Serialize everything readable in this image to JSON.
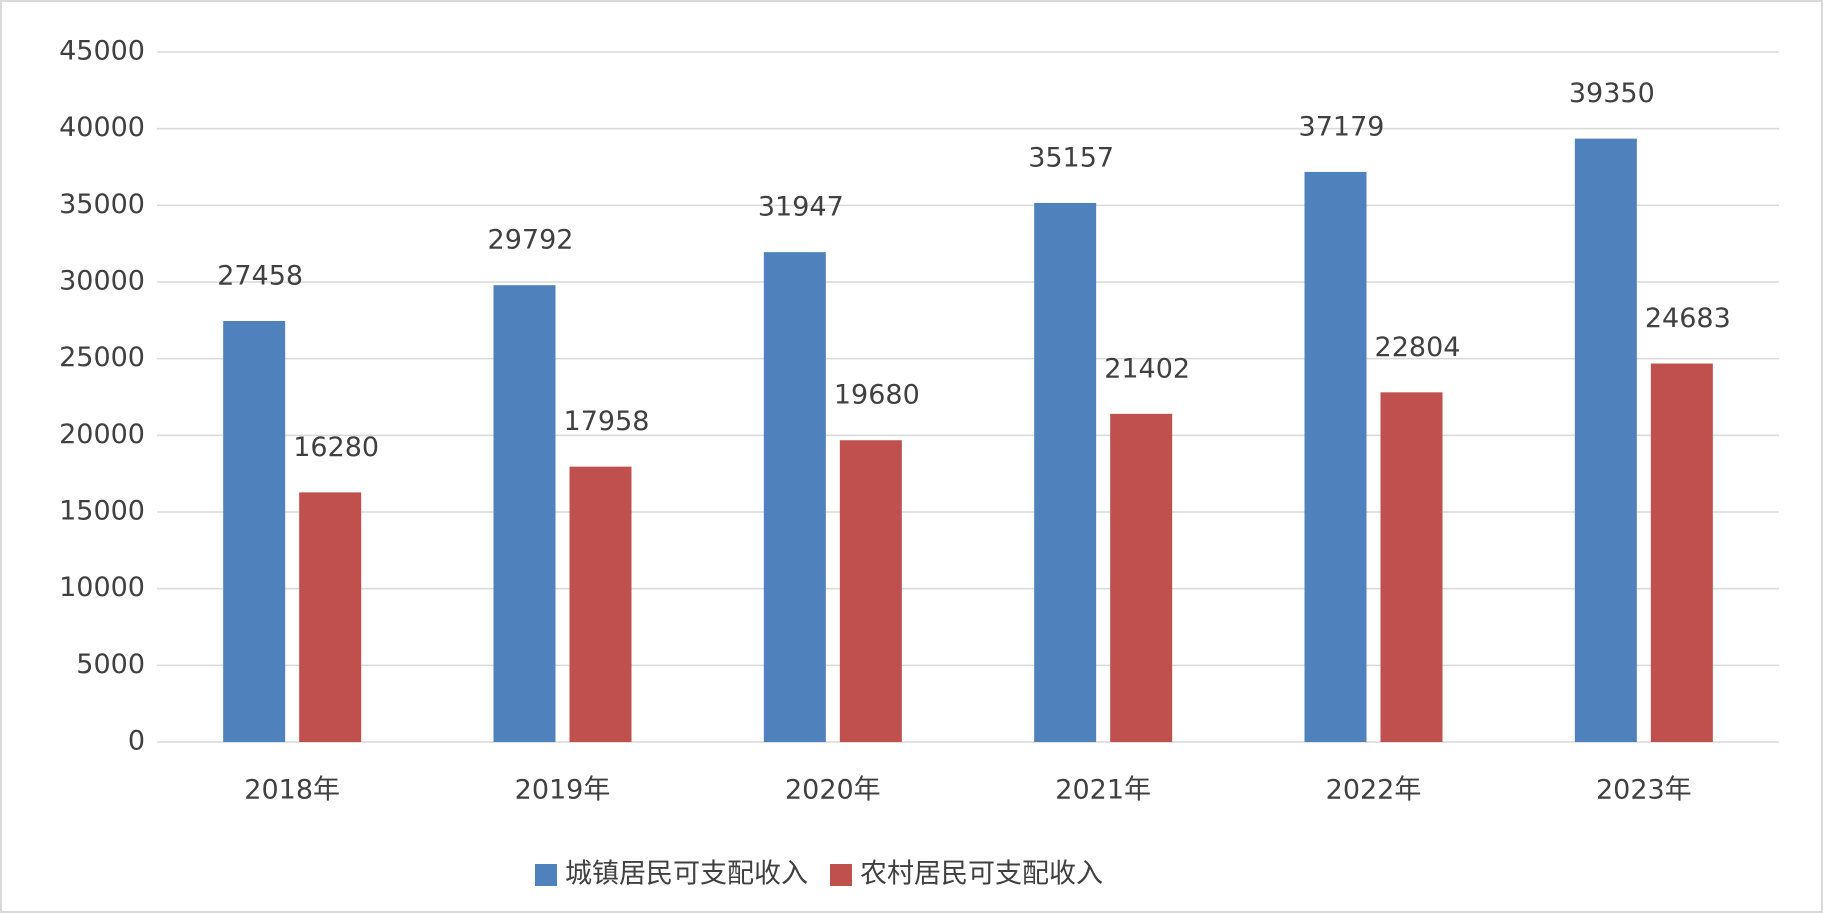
{
  "chart_data": {
    "type": "bar",
    "categories": [
      "2018年",
      "2019年",
      "2020年",
      "2021年",
      "2022年",
      "2023年"
    ],
    "series": [
      {
        "name": "城镇居民可支配收入",
        "color": "#4f81bd",
        "values": [
          27458,
          29792,
          31947,
          35157,
          37179,
          39350
        ]
      },
      {
        "name": "农村居民可支配收入",
        "color": "#c0504d",
        "values": [
          16280,
          17958,
          19680,
          21402,
          22804,
          24683
        ]
      }
    ],
    "ylim": [
      0,
      45000
    ],
    "yticks": [
      0,
      5000,
      10000,
      15000,
      20000,
      25000,
      30000,
      35000,
      40000,
      45000
    ],
    "grid": true,
    "legend": "bottom"
  }
}
